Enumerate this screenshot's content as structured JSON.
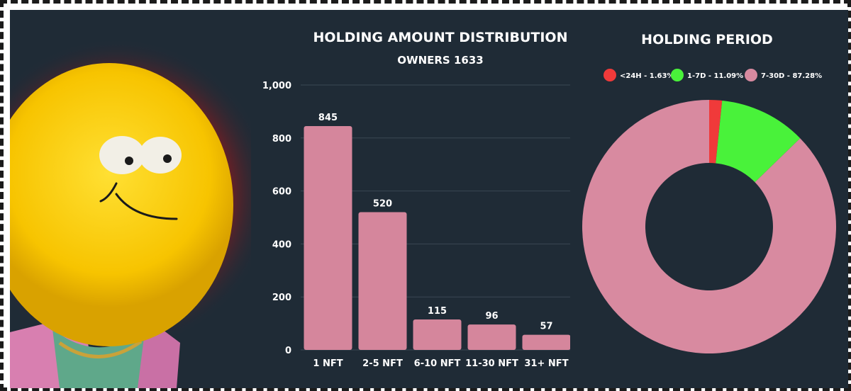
{
  "chart_data": [
    {
      "type": "bar",
      "title": "HOLDING AMOUNT DISTRIBUTION",
      "subtitle": "OWNERS 1633",
      "categories": [
        "1 NFT",
        "2-5 NFT",
        "6-10 NFT",
        "11-30 NFT",
        "31+ NFT"
      ],
      "values": [
        845,
        520,
        115,
        96,
        57
      ],
      "data_labels": [
        "845",
        "520",
        "115",
        "96",
        "57"
      ],
      "y_ticks": [
        "0",
        "200",
        "400",
        "600",
        "800",
        "1,000"
      ],
      "y_tick_values": [
        0,
        200,
        400,
        600,
        800,
        1000
      ],
      "ylim": [
        0,
        1000
      ],
      "grid": true,
      "bar_color": "#d5869c"
    },
    {
      "type": "pie",
      "title": "HOLDING PERIOD",
      "donut": true,
      "legend_position": "top",
      "slices": [
        {
          "label": "<24H - 1.63%",
          "value": 1.63,
          "color": "#f03a3a"
        },
        {
          "label": "1-7D - 11.09%",
          "value": 11.09,
          "color": "#49f23a"
        },
        {
          "label": "7-30D - 87.28%",
          "value": 87.28,
          "color": "#d88aa0"
        }
      ]
    }
  ],
  "colors": {
    "panel_background": "#1f2b36",
    "gridline": "#3a4753",
    "text": "#ffffff"
  },
  "mascot": {
    "name": "yellow-blob-mascot"
  }
}
